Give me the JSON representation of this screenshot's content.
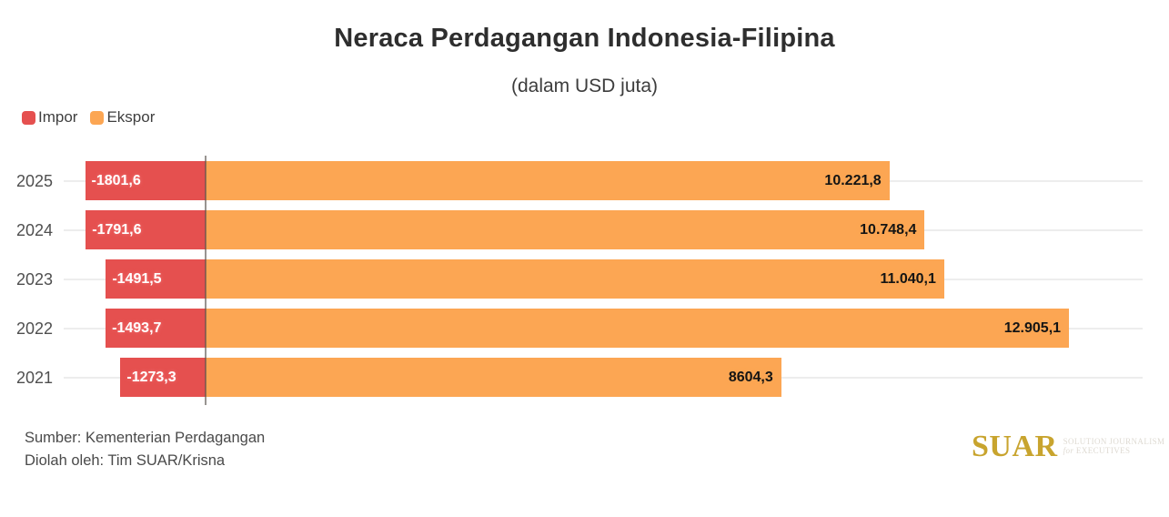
{
  "header": {
    "title": "Neraca Perdagangan Indonesia-Filipina",
    "subtitle": "(dalam USD juta)"
  },
  "chart_data": {
    "type": "bar",
    "orientation": "horizontal",
    "title": "Neraca Perdagangan Indonesia-Filipina",
    "subtitle": "(dalam USD juta)",
    "unit": "USD juta",
    "categories": [
      "2025",
      "2024",
      "2023",
      "2022",
      "2021"
    ],
    "series": [
      {
        "name": "Impor",
        "color": "#e5504f",
        "values": [
          -1801.6,
          -1791.6,
          -1491.5,
          -1493.7,
          -1273.3
        ],
        "labels": [
          "-1801,6",
          "-1791,6",
          "-1491,5",
          "-1493,7",
          "-1273,3"
        ]
      },
      {
        "name": "Ekspor",
        "color": "#fca653",
        "values": [
          10221.8,
          10748.4,
          11040.1,
          12905.1,
          8604.3
        ],
        "labels": [
          "10.221,8",
          "10.748,4",
          "11.040,1",
          "12.905,1",
          "8604,3"
        ]
      }
    ],
    "xlabel": "",
    "ylabel": "",
    "xlim": [
      -2120,
      14270
    ],
    "grid": true,
    "legend_position": "top-left"
  },
  "legend": {
    "items": [
      {
        "label": "Impor",
        "color": "#e5504f"
      },
      {
        "label": "Ekspor",
        "color": "#fca653"
      }
    ]
  },
  "footer": {
    "source": "Sumber: Kementerian Perdagangan",
    "credit": "Diolah oleh: Tim SUAR/Krisna"
  },
  "logo": {
    "name": "SUAR",
    "tagline_line1": "SOLUTION JOURNALISM",
    "tagline_for": "for",
    "tagline_line2": " EXECUTIVES",
    "color": "#c8a42e"
  },
  "colors": {
    "impor": "#e5504f",
    "ekspor": "#fca653",
    "background": "#ffffff",
    "gridline": "#ededed",
    "axis": "#58524e",
    "title_text": "#2e2e2e",
    "logo_gold": "#c8a42e"
  }
}
